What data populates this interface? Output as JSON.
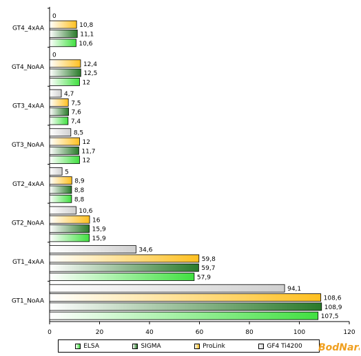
{
  "chart_data": {
    "type": "bar",
    "orientation": "horizontal",
    "categories": [
      "GT1_NoAA",
      "GT1_4xAA",
      "GT2_NoAA",
      "GT2_4xAA",
      "GT3_NoAA",
      "GT3_4xAA",
      "GT4_NoAA",
      "GT4_4xAA"
    ],
    "series": [
      {
        "name": "GF4 Ti4200",
        "color": "#d0d0d0",
        "values": [
          94.1,
          34.6,
          10.6,
          5,
          8.5,
          4.7,
          0,
          0
        ]
      },
      {
        "name": "ProLink",
        "color": "#ffc020",
        "values": [
          108.6,
          59.8,
          16,
          8.9,
          12,
          7.5,
          12.4,
          10.8
        ]
      },
      {
        "name": "SIGMA",
        "color": "#2a7a2a",
        "values": [
          108.9,
          59.7,
          15.9,
          8.8,
          11.7,
          7.6,
          12.5,
          11.1
        ]
      },
      {
        "name": "ELSA",
        "color": "#40e040",
        "values": [
          107.5,
          57.9,
          15.9,
          8.8,
          12,
          7.4,
          12,
          10.6
        ]
      }
    ],
    "value_labels": [
      [
        "94,1",
        "108,6",
        "108,9",
        "107,5"
      ],
      [
        "34,6",
        "59,8",
        "59,7",
        "57,9"
      ],
      [
        "10,6",
        "16",
        "15,9",
        "15,9"
      ],
      [
        "5",
        "8,9",
        "8,8",
        "8,8"
      ],
      [
        "8,5",
        "12",
        "11,7",
        "12"
      ],
      [
        "4,7",
        "7,5",
        "7,6",
        "7,4"
      ],
      [
        "0",
        "12,4",
        "12,5",
        "12"
      ],
      [
        "0",
        "10,8",
        "11,1",
        "10,6"
      ]
    ],
    "xlim": [
      0,
      120
    ],
    "xticks": [
      "0",
      "20",
      "40",
      "60",
      "80",
      "100",
      "120"
    ],
    "legend": {
      "position": "bottom",
      "order": [
        "ELSA",
        "SIGMA",
        "ProLink",
        "GF4 Ti4200"
      ]
    },
    "grid": false
  },
  "logo": {
    "text": "BodNara"
  }
}
